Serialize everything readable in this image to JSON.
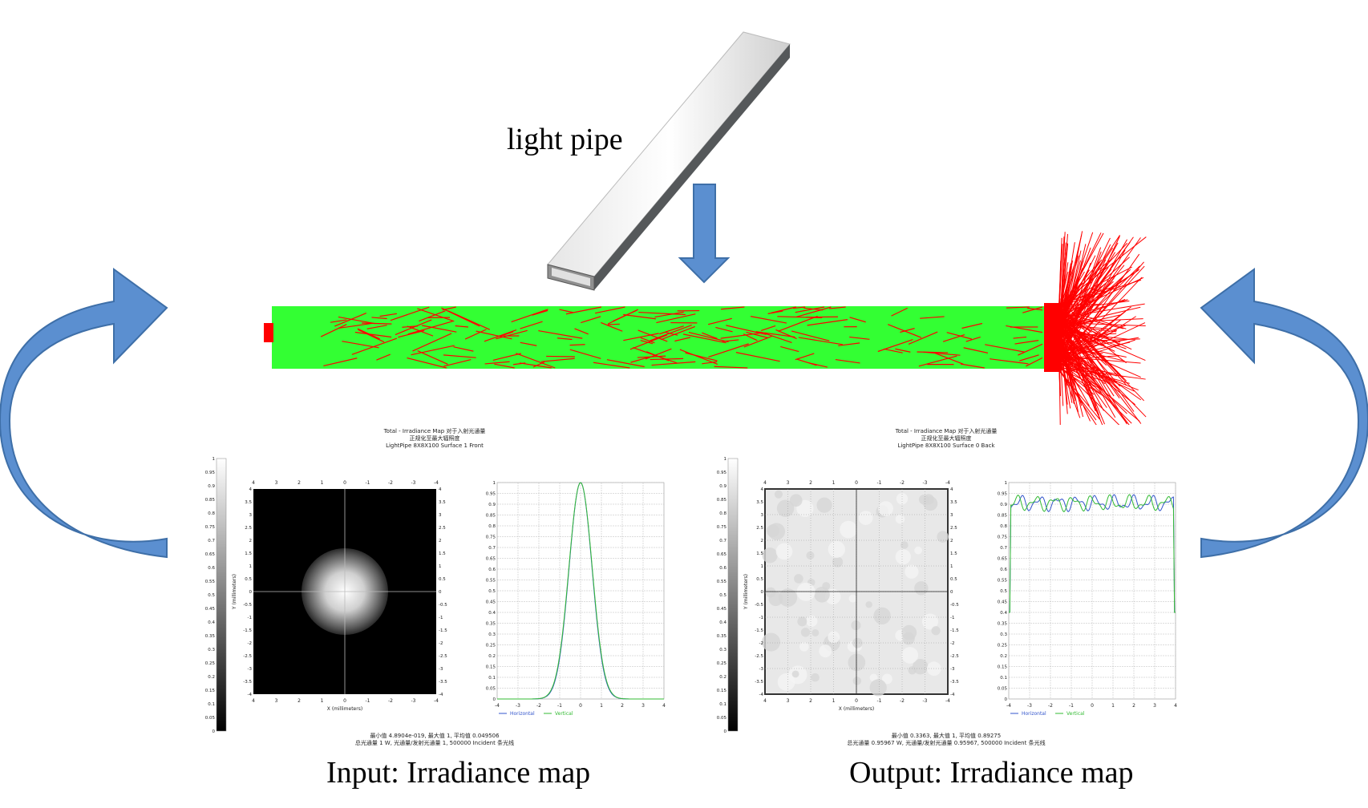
{
  "labels": {
    "light_pipe": "light pipe",
    "input_caption": "Input: Irradiance map",
    "output_caption": "Output: Irradiance map"
  },
  "colors": {
    "pipe_green": "#33ff33",
    "ray_red": "#ff0000",
    "arrow_blue": "#5b8fd0",
    "arrow_stroke": "#3e6fa8"
  },
  "input_map": {
    "title_lines": [
      "Total - Irradiance Map 对于入射光通量",
      "正规化至最大辐照度",
      "LightPipe 8X8X100 Surface 1 Front"
    ],
    "xlabel": "X (millimeters)",
    "ylabel": "Y (millimeters)",
    "colorbar_ticks": [
      "1",
      "0.95",
      "0.9",
      "0.85",
      "0.8",
      "0.75",
      "0.7",
      "0.65",
      "0.6",
      "0.55",
      "0.5",
      "0.45",
      "0.4",
      "0.35",
      "0.3",
      "0.25",
      "0.2",
      "0.15",
      "0.1",
      "0.05",
      "0"
    ],
    "x_ticks_top": [
      "4",
      "3",
      "2",
      "1",
      "0",
      "-1",
      "-2",
      "-3",
      "-4"
    ],
    "x_ticks_bottom": [
      "4",
      "3",
      "2",
      "1",
      "0",
      "-1",
      "-2",
      "-3",
      "-4"
    ],
    "y_ticks_left": [
      "4",
      "3.5",
      "3",
      "2.5",
      "2",
      "1.5",
      "1",
      "0.5",
      "0",
      "-0.5",
      "-1",
      "-1.5",
      "-2",
      "-2.5",
      "-3",
      "-3.5",
      "-4"
    ],
    "y_ticks_right": [
      "4",
      "3.5",
      "3",
      "2.5",
      "2",
      "1.5",
      "1",
      "0.5",
      "0",
      "-0.5",
      "-1",
      "-1.5",
      "-2",
      "-2.5",
      "-3",
      "-3.5",
      "-4"
    ],
    "profile_y_ticks": [
      "1",
      "0.95",
      "0.9",
      "0.85",
      "0.8",
      "0.75",
      "0.7",
      "0.65",
      "0.6",
      "0.55",
      "0.5",
      "0.45",
      "0.4",
      "0.35",
      "0.3",
      "0.25",
      "0.2",
      "0.15",
      "0.1",
      "0.05",
      "0"
    ],
    "profile_x_ticks": [
      "-4",
      "-3",
      "-2",
      "-1",
      "0",
      "1",
      "2",
      "3",
      "4"
    ],
    "legend": [
      "Horizontal",
      "Vertical"
    ],
    "footer_lines": [
      "最小值 4.8904e-019, 最大值 1, 平均值 0.049506",
      "总光通量 1 W, 光通量/发射光通量 1, 500000 Incident 条光线"
    ]
  },
  "output_map": {
    "title_lines": [
      "Total - Irradiance Map 对于入射光通量",
      "正规化至最大辐照度",
      "LightPipe 8X8X100 Surface 0 Back"
    ],
    "xlabel": "X (millimeters)",
    "ylabel": "Y (millimeters)",
    "colorbar_ticks": [
      "1",
      "0.95",
      "0.9",
      "0.85",
      "0.8",
      "0.75",
      "0.7",
      "0.65",
      "0.6",
      "0.55",
      "0.5",
      "0.45",
      "0.4",
      "0.35",
      "0.3",
      "0.25",
      "0.2",
      "0.15",
      "0.1",
      "0.05",
      "0"
    ],
    "x_ticks_top": [
      "4",
      "3",
      "2",
      "1",
      "0",
      "-1",
      "-2",
      "-3",
      "-4"
    ],
    "x_ticks_bottom": [
      "4",
      "3",
      "2",
      "1",
      "0",
      "-1",
      "-2",
      "-3",
      "-4"
    ],
    "y_ticks_left": [
      "4",
      "3.5",
      "3",
      "2.5",
      "2",
      "1.5",
      "1",
      "0.5",
      "0",
      "-0.5",
      "-1",
      "-1.5",
      "-2",
      "-2.5",
      "-3",
      "-3.5",
      "-4"
    ],
    "y_ticks_right": [
      "4",
      "3.5",
      "3",
      "2.5",
      "2",
      "1.5",
      "1",
      "0.5",
      "0",
      "-0.5",
      "-1",
      "-1.5",
      "-2",
      "-2.5",
      "-3",
      "-3.5",
      "-4"
    ],
    "profile_y_ticks": [
      "1",
      "0.95",
      "0.9",
      "0.85",
      "0.8",
      "0.75",
      "0.7",
      "0.65",
      "0.6",
      "0.55",
      "0.5",
      "0.45",
      "0.4",
      "0.35",
      "0.3",
      "0.25",
      "0.2",
      "0.15",
      "0.1",
      "0.05",
      "0"
    ],
    "profile_x_ticks": [
      "-4",
      "-3",
      "-2",
      "-1",
      "0",
      "1",
      "2",
      "3",
      "4"
    ],
    "legend": [
      "Horizontal",
      "Vertical"
    ],
    "footer_lines": [
      "最小值 0.3363, 最大值 1, 平均值 0.89275",
      "总光通量 0.95967 W, 光通量/发射光通量 0.95967, 500000 Incident 条光线"
    ]
  }
}
